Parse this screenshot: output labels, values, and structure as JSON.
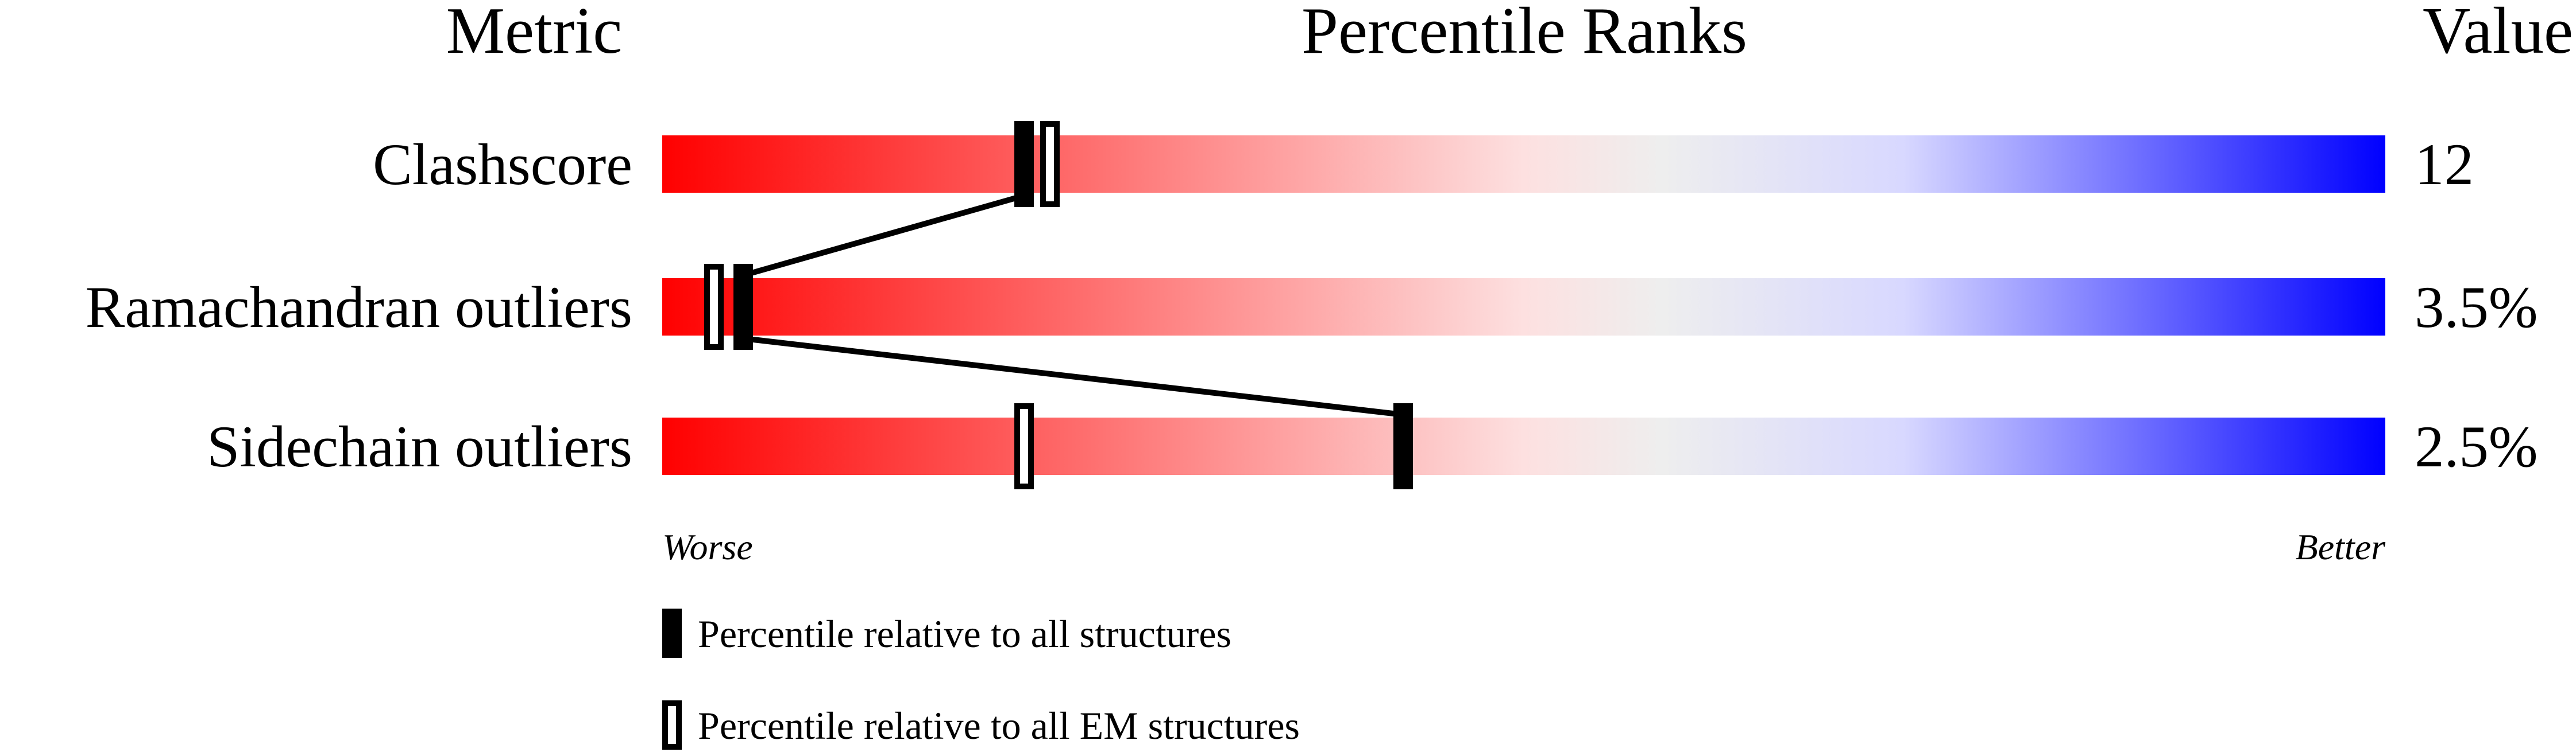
{
  "chart_data": {
    "type": "bar",
    "headers": {
      "metric": "Metric",
      "percentile": "Percentile Ranks",
      "value": "Value"
    },
    "xlim": [
      0,
      100
    ],
    "axis_left_label": "Worse",
    "axis_right_label": "Better",
    "gradient_colors": [
      "#ff0000",
      "#fde0e0",
      "#eeeeee",
      "#d8d8ff",
      "#0000ff"
    ],
    "rows": [
      {
        "metric": "Clashscore",
        "value": "12",
        "percentile_all": 21,
        "percentile_em": 22.5
      },
      {
        "metric": "Ramachandran outliers",
        "value": "3.5%",
        "percentile_all": 4.7,
        "percentile_em": 3
      },
      {
        "metric": "Sidechain outliers",
        "value": "2.5%",
        "percentile_all": 43,
        "percentile_em": 21
      }
    ],
    "legend": [
      {
        "marker": "filled",
        "label": "Percentile relative to all structures"
      },
      {
        "marker": "open",
        "label": "Percentile relative to all EM structures"
      }
    ]
  }
}
